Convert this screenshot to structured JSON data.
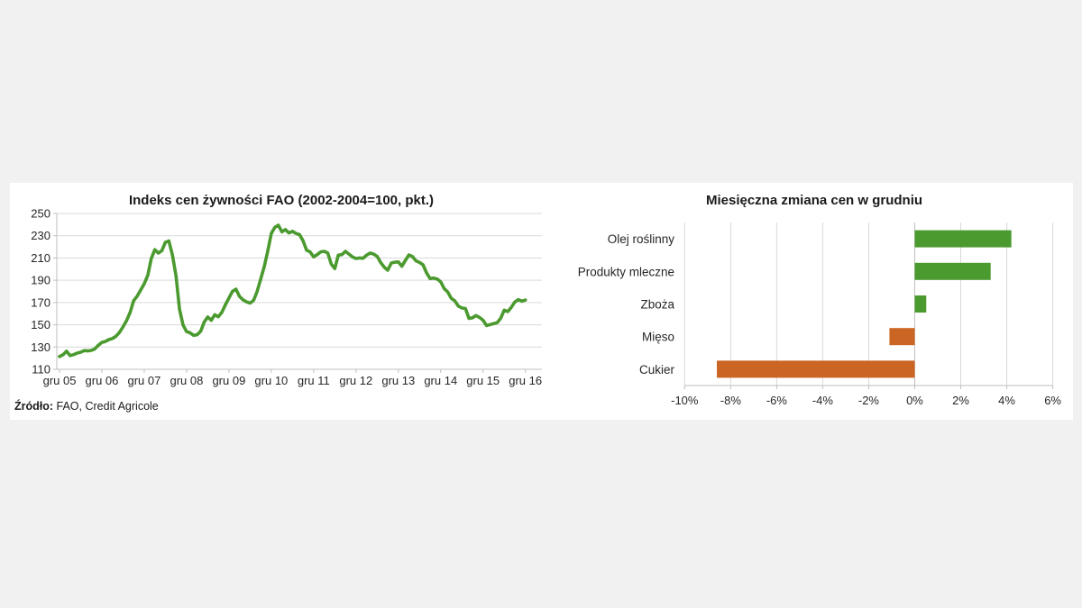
{
  "page": {
    "background_color": "#f1f1f1",
    "panel_color": "#ffffff"
  },
  "source": {
    "label": "Źródło:",
    "text": " FAO, Credit Agricole"
  },
  "colors": {
    "green": "#4b9a2f",
    "orange": "#cb6524",
    "gridline": "#d9d9d9",
    "axis": "#bfbfbf",
    "text": "#262626"
  },
  "chart_data": [
    {
      "type": "line",
      "title": "Indeks cen żywności FAO (2002-2004=100, pkt.)",
      "series_name": "Indeks cen żywności FAO",
      "frequency": "monthly",
      "x_start": "gru 05",
      "x_end": "gru 16",
      "x_tick_labels": [
        "gru 05",
        "gru 06",
        "gru 07",
        "gru 08",
        "gru 09",
        "gru 10",
        "gru 11",
        "gru 12",
        "gru 13",
        "gru 14",
        "gru 15",
        "gru 16"
      ],
      "y_ticks": [
        110,
        130,
        150,
        170,
        190,
        210,
        230,
        250
      ],
      "ylim": [
        110,
        250
      ],
      "grid": "horizontal",
      "legend": "none",
      "line_color": "#4b9a2f",
      "values": [
        121.5,
        123.0,
        126.3,
        122.3,
        123.2,
        124.6,
        125.4,
        126.8,
        126.5,
        127.0,
        128.3,
        131.6,
        134.2,
        135.0,
        136.7,
        137.7,
        139.7,
        143.2,
        148.2,
        153.8,
        161.1,
        171.6,
        175.7,
        181.2,
        186.7,
        194.4,
        209.5,
        217.5,
        214.4,
        216.6,
        224.1,
        225.3,
        212.4,
        194.0,
        163.9,
        149.8,
        143.9,
        142.8,
        140.5,
        141.1,
        144.2,
        152.5,
        157.0,
        154.0,
        159.0,
        157.2,
        161.3,
        168.0,
        174.0,
        180.0,
        182.0,
        175.5,
        172.5,
        170.5,
        169.5,
        172.0,
        180.0,
        191.0,
        202.0,
        216.0,
        232.0,
        237.5,
        239.5,
        233.5,
        235.5,
        232.5,
        234.0,
        232.0,
        231.0,
        225.5,
        217.0,
        215.5,
        211.0,
        213.0,
        215.5,
        216.0,
        214.5,
        204.5,
        200.5,
        212.5,
        213.0,
        216.0,
        213.5,
        211.0,
        209.5,
        210.0,
        209.8,
        212.5,
        214.5,
        213.5,
        211.5,
        206.0,
        201.8,
        199.0,
        205.5,
        206.2,
        206.5,
        202.6,
        207.8,
        212.8,
        211.3,
        207.4,
        206.0,
        203.9,
        196.6,
        191.5,
        192.0,
        191.2,
        188.6,
        182.5,
        179.4,
        173.8,
        171.5,
        166.8,
        165.1,
        164.6,
        155.7,
        156.3,
        158.3,
        156.6,
        154.1,
        149.3,
        150.1,
        151.0,
        151.8,
        155.8,
        163.2,
        161.9,
        165.6,
        170.5,
        172.6,
        171.3,
        172.2
      ]
    },
    {
      "type": "bar",
      "orientation": "horizontal",
      "title": "Miesięczna zmiana cen w grudniu",
      "categories": [
        "Olej roślinny",
        "Produkty mleczne",
        "Zboża",
        "Mięso",
        "Cukier"
      ],
      "values": [
        4.2,
        3.3,
        0.5,
        -1.1,
        -8.6
      ],
      "unit": "%",
      "x_ticks": [
        -10,
        -8,
        -6,
        -4,
        -2,
        0,
        2,
        4,
        6
      ],
      "x_tick_labels": [
        "-10%",
        "-8%",
        "-6%",
        "-4%",
        "-2%",
        "0%",
        "2%",
        "4%",
        "6%"
      ],
      "xlim": [
        -10,
        6
      ],
      "grid": "vertical",
      "legend": "none",
      "positive_color": "#4b9a2f",
      "negative_color": "#cb6524"
    }
  ]
}
